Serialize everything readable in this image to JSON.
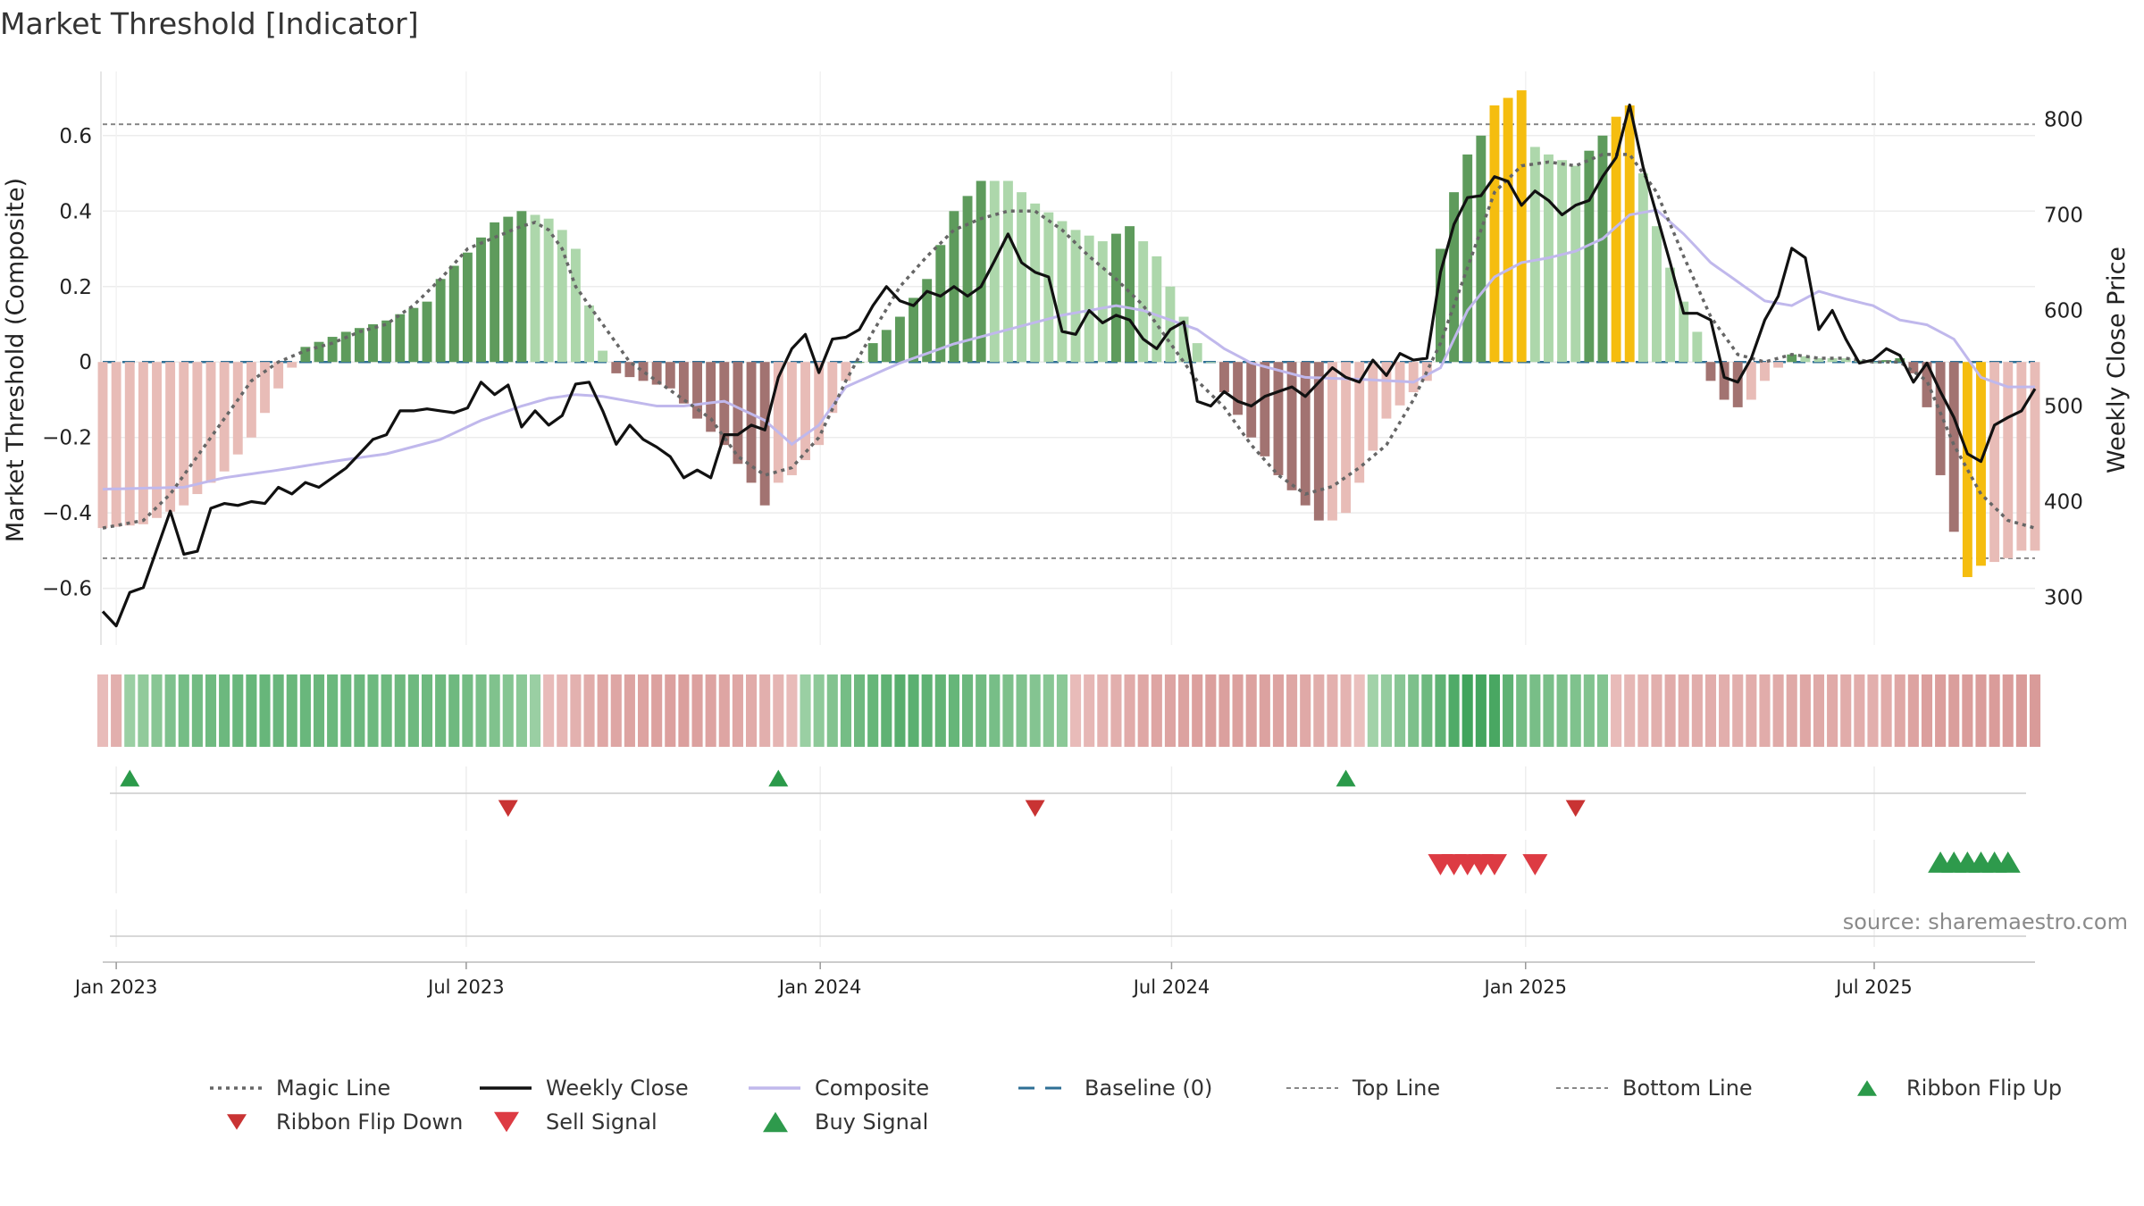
{
  "chart_data": {
    "type": "bar",
    "title": "Market Threshold [Indicator]",
    "ylabel_left": "Market Threshold (Composite)",
    "ylabel_right": "Weekly Close Price",
    "ylim_left": [
      -0.75,
      0.77
    ],
    "ylim_right": [
      250,
      850
    ],
    "yticks_left": [
      "0.6",
      "0.4",
      "0.2",
      "0",
      "−0.2",
      "−0.4",
      "−0.6"
    ],
    "yticks_left_values": [
      0.6,
      0.4,
      0.2,
      0,
      -0.2,
      -0.4,
      -0.6
    ],
    "yticks_right": [
      "800",
      "700",
      "600",
      "500",
      "400",
      "300"
    ],
    "yticks_right_values": [
      800,
      700,
      600,
      500,
      400,
      300
    ],
    "x_range_weeks": [
      -1,
      142
    ],
    "xticks": [
      {
        "label": "Jan 2023",
        "week": 0
      },
      {
        "label": "Jul 2023",
        "week": 25.9
      },
      {
        "label": "Jan 2024",
        "week": 52.1
      },
      {
        "label": "Jul 2024",
        "week": 78.1
      },
      {
        "label": "Jan 2025",
        "week": 104.3
      },
      {
        "label": "Jul 2025",
        "week": 130.1
      }
    ],
    "top_line": 0.63,
    "bottom_line": -0.52,
    "baseline": 0,
    "composite_keys": [
      [
        -1,
        -0.44
      ],
      [
        2,
        -0.43
      ],
      [
        5,
        -0.38
      ],
      [
        8,
        -0.29
      ],
      [
        10,
        -0.2
      ],
      [
        12,
        -0.07
      ],
      [
        14,
        0.04
      ],
      [
        17,
        0.08
      ],
      [
        20,
        0.11
      ],
      [
        23,
        0.16
      ],
      [
        24,
        0.22
      ],
      [
        26,
        0.29
      ],
      [
        28,
        0.37
      ],
      [
        30,
        0.4
      ],
      [
        32,
        0.38
      ],
      [
        33,
        0.35
      ],
      [
        34,
        0.3
      ],
      [
        35,
        0.15
      ],
      [
        36,
        0.03
      ],
      [
        37,
        -0.03
      ],
      [
        38,
        -0.04
      ],
      [
        41,
        -0.07
      ],
      [
        43,
        -0.15
      ],
      [
        45,
        -0.22
      ],
      [
        47,
        -0.32
      ],
      [
        48,
        -0.38
      ],
      [
        49,
        -0.32
      ],
      [
        50,
        -0.3
      ],
      [
        52,
        -0.22
      ],
      [
        54,
        -0.05
      ],
      [
        56,
        0.05
      ],
      [
        58,
        0.12
      ],
      [
        60,
        0.22
      ],
      [
        62,
        0.4
      ],
      [
        64,
        0.48
      ],
      [
        66,
        0.48
      ],
      [
        68,
        0.42
      ],
      [
        71,
        0.35
      ],
      [
        73,
        0.32
      ],
      [
        75,
        0.36
      ],
      [
        77,
        0.28
      ],
      [
        78,
        0.2
      ],
      [
        79,
        0.12
      ],
      [
        80,
        0.05
      ],
      [
        81,
        0.0
      ],
      [
        82,
        -0.08
      ],
      [
        84,
        -0.2
      ],
      [
        86,
        -0.3
      ],
      [
        88,
        -0.38
      ],
      [
        89,
        -0.42
      ],
      [
        90,
        -0.42
      ],
      [
        91,
        -0.4
      ],
      [
        92,
        -0.32
      ],
      [
        94,
        -0.15
      ],
      [
        96,
        -0.08
      ],
      [
        97,
        -0.05
      ],
      [
        98,
        0.3
      ],
      [
        99,
        0.45
      ],
      [
        100,
        0.55
      ],
      [
        101,
        0.6
      ],
      [
        102,
        0.68
      ],
      [
        104,
        0.72
      ],
      [
        105,
        0.57
      ],
      [
        106,
        0.55
      ],
      [
        108,
        0.52
      ],
      [
        110,
        0.6
      ],
      [
        111,
        0.65
      ],
      [
        112,
        0.68
      ],
      [
        113,
        0.5
      ],
      [
        114,
        0.36
      ],
      [
        115,
        0.25
      ],
      [
        116,
        0.16
      ],
      [
        117,
        0.08
      ],
      [
        118,
        -0.05
      ],
      [
        119,
        -0.1
      ],
      [
        120,
        -0.12
      ],
      [
        121,
        -0.1
      ],
      [
        122,
        -0.05
      ],
      [
        124,
        0.02
      ],
      [
        126,
        0.01
      ],
      [
        128,
        0.01
      ],
      [
        130,
        0.0
      ],
      [
        132,
        0.01
      ],
      [
        133,
        -0.03
      ],
      [
        134,
        -0.12
      ],
      [
        135,
        -0.3
      ],
      [
        136,
        -0.45
      ],
      [
        137,
        -0.57
      ],
      [
        138,
        -0.54
      ],
      [
        140,
        -0.52
      ],
      [
        141,
        -0.5
      ]
    ],
    "weekly_close_keys": [
      [
        -1,
        285
      ],
      [
        0,
        270
      ],
      [
        1,
        305
      ],
      [
        2,
        310
      ],
      [
        3,
        350
      ],
      [
        4,
        390
      ],
      [
        5,
        345
      ],
      [
        6,
        348
      ],
      [
        7,
        393
      ],
      [
        8,
        398
      ],
      [
        9,
        396
      ],
      [
        10,
        400
      ],
      [
        11,
        398
      ],
      [
        12,
        415
      ],
      [
        13,
        408
      ],
      [
        14,
        420
      ],
      [
        15,
        415
      ],
      [
        17,
        435
      ],
      [
        19,
        465
      ],
      [
        20,
        470
      ],
      [
        21,
        495
      ],
      [
        22,
        495
      ],
      [
        23,
        497
      ],
      [
        24,
        495
      ],
      [
        25,
        493
      ],
      [
        26,
        498
      ],
      [
        27,
        525
      ],
      [
        28,
        512
      ],
      [
        29,
        522
      ],
      [
        30,
        478
      ],
      [
        31,
        495
      ],
      [
        32,
        480
      ],
      [
        33,
        490
      ],
      [
        34,
        523
      ],
      [
        35,
        525
      ],
      [
        36,
        495
      ],
      [
        37,
        460
      ],
      [
        38,
        480
      ],
      [
        39,
        465
      ],
      [
        40,
        457
      ],
      [
        41,
        447
      ],
      [
        42,
        425
      ],
      [
        43,
        433
      ],
      [
        44,
        425
      ],
      [
        45,
        470
      ],
      [
        46,
        470
      ],
      [
        47,
        480
      ],
      [
        48,
        475
      ],
      [
        49,
        530
      ],
      [
        50,
        560
      ],
      [
        51,
        575
      ],
      [
        52,
        535
      ],
      [
        53,
        570
      ],
      [
        54,
        572
      ],
      [
        55,
        580
      ],
      [
        56,
        605
      ],
      [
        57,
        625
      ],
      [
        58,
        610
      ],
      [
        59,
        605
      ],
      [
        60,
        620
      ],
      [
        61,
        615
      ],
      [
        62,
        625
      ],
      [
        63,
        615
      ],
      [
        64,
        625
      ],
      [
        65,
        652
      ],
      [
        66,
        680
      ],
      [
        67,
        650
      ],
      [
        68,
        640
      ],
      [
        69,
        635
      ],
      [
        70,
        578
      ],
      [
        71,
        575
      ],
      [
        72,
        600
      ],
      [
        73,
        587
      ],
      [
        74,
        595
      ],
      [
        75,
        590
      ],
      [
        76,
        570
      ],
      [
        77,
        560
      ],
      [
        78,
        580
      ],
      [
        79,
        588
      ],
      [
        80,
        505
      ],
      [
        81,
        500
      ],
      [
        82,
        515
      ],
      [
        83,
        505
      ],
      [
        84,
        500
      ],
      [
        85,
        510
      ],
      [
        86,
        515
      ],
      [
        87,
        520
      ],
      [
        88,
        510
      ],
      [
        89,
        525
      ],
      [
        90,
        540
      ],
      [
        91,
        530
      ],
      [
        92,
        525
      ],
      [
        93,
        548
      ],
      [
        94,
        532
      ],
      [
        95,
        555
      ],
      [
        96,
        548
      ],
      [
        97,
        550
      ],
      [
        98,
        640
      ],
      [
        99,
        690
      ],
      [
        100,
        718
      ],
      [
        101,
        720
      ],
      [
        102,
        740
      ],
      [
        103,
        735
      ],
      [
        104,
        710
      ],
      [
        105,
        725
      ],
      [
        106,
        715
      ],
      [
        107,
        700
      ],
      [
        108,
        710
      ],
      [
        109,
        715
      ],
      [
        110,
        740
      ],
      [
        111,
        760
      ],
      [
        112,
        815
      ],
      [
        113,
        750
      ],
      [
        114,
        700
      ],
      [
        115,
        650
      ],
      [
        116,
        597
      ],
      [
        117,
        597
      ],
      [
        118,
        590
      ],
      [
        119,
        530
      ],
      [
        120,
        525
      ],
      [
        121,
        550
      ],
      [
        122,
        590
      ],
      [
        123,
        615
      ],
      [
        124,
        665
      ],
      [
        125,
        655
      ],
      [
        126,
        580
      ],
      [
        127,
        600
      ],
      [
        128,
        570
      ],
      [
        129,
        545
      ],
      [
        130,
        548
      ],
      [
        131,
        560
      ],
      [
        132,
        553
      ],
      [
        133,
        525
      ],
      [
        134,
        545
      ],
      [
        135,
        515
      ],
      [
        136,
        488
      ],
      [
        137,
        450
      ],
      [
        138,
        442
      ],
      [
        139,
        480
      ],
      [
        140,
        488
      ],
      [
        141,
        495
      ],
      [
        142,
        518
      ]
    ],
    "composite_line_keys": [
      [
        -1,
        413
      ],
      [
        5,
        415
      ],
      [
        8,
        425
      ],
      [
        12,
        433
      ],
      [
        16,
        442
      ],
      [
        20,
        450
      ],
      [
        24,
        465
      ],
      [
        27,
        485
      ],
      [
        30,
        500
      ],
      [
        32,
        508
      ],
      [
        34,
        512
      ],
      [
        36,
        510
      ],
      [
        38,
        505
      ],
      [
        40,
        500
      ],
      [
        42,
        500
      ],
      [
        45,
        505
      ],
      [
        48,
        485
      ],
      [
        50,
        460
      ],
      [
        52,
        480
      ],
      [
        54,
        520
      ],
      [
        58,
        545
      ],
      [
        62,
        565
      ],
      [
        66,
        580
      ],
      [
        70,
        595
      ],
      [
        74,
        605
      ],
      [
        76,
        600
      ],
      [
        78,
        590
      ],
      [
        80,
        580
      ],
      [
        82,
        560
      ],
      [
        84,
        545
      ],
      [
        88,
        530
      ],
      [
        92,
        528
      ],
      [
        96,
        525
      ],
      [
        98,
        540
      ],
      [
        100,
        600
      ],
      [
        102,
        635
      ],
      [
        104,
        650
      ],
      [
        106,
        655
      ],
      [
        108,
        662
      ],
      [
        110,
        675
      ],
      [
        112,
        700
      ],
      [
        114,
        705
      ],
      [
        116,
        680
      ],
      [
        118,
        650
      ],
      [
        120,
        630
      ],
      [
        122,
        610
      ],
      [
        124,
        605
      ],
      [
        126,
        620
      ],
      [
        128,
        612
      ],
      [
        130,
        605
      ],
      [
        132,
        590
      ],
      [
        134,
        585
      ],
      [
        136,
        570
      ],
      [
        138,
        530
      ],
      [
        140,
        520
      ],
      [
        142,
        520
      ]
    ],
    "magic_line_keys": [
      [
        -1,
        -0.44
      ],
      [
        2,
        -0.42
      ],
      [
        4,
        -0.35
      ],
      [
        6,
        -0.25
      ],
      [
        8,
        -0.15
      ],
      [
        10,
        -0.05
      ],
      [
        12,
        0.0
      ],
      [
        14,
        0.03
      ],
      [
        16,
        0.05
      ],
      [
        18,
        0.08
      ],
      [
        20,
        0.1
      ],
      [
        22,
        0.15
      ],
      [
        24,
        0.22
      ],
      [
        26,
        0.3
      ],
      [
        28,
        0.33
      ],
      [
        30,
        0.36
      ],
      [
        31,
        0.37
      ],
      [
        32,
        0.35
      ],
      [
        33,
        0.3
      ],
      [
        34,
        0.2
      ],
      [
        36,
        0.1
      ],
      [
        38,
        0.0
      ],
      [
        40,
        -0.05
      ],
      [
        42,
        -0.1
      ],
      [
        44,
        -0.15
      ],
      [
        46,
        -0.25
      ],
      [
        48,
        -0.3
      ],
      [
        50,
        -0.28
      ],
      [
        52,
        -0.2
      ],
      [
        54,
        -0.05
      ],
      [
        56,
        0.08
      ],
      [
        58,
        0.2
      ],
      [
        60,
        0.28
      ],
      [
        62,
        0.35
      ],
      [
        64,
        0.38
      ],
      [
        66,
        0.4
      ],
      [
        68,
        0.4
      ],
      [
        70,
        0.35
      ],
      [
        72,
        0.28
      ],
      [
        74,
        0.22
      ],
      [
        76,
        0.15
      ],
      [
        78,
        0.05
      ],
      [
        80,
        -0.05
      ],
      [
        82,
        -0.12
      ],
      [
        84,
        -0.22
      ],
      [
        86,
        -0.3
      ],
      [
        88,
        -0.35
      ],
      [
        90,
        -0.33
      ],
      [
        92,
        -0.28
      ],
      [
        94,
        -0.22
      ],
      [
        96,
        -0.1
      ],
      [
        98,
        0.05
      ],
      [
        100,
        0.25
      ],
      [
        102,
        0.45
      ],
      [
        104,
        0.52
      ],
      [
        106,
        0.53
      ],
      [
        108,
        0.52
      ],
      [
        110,
        0.55
      ],
      [
        112,
        0.55
      ],
      [
        114,
        0.45
      ],
      [
        116,
        0.28
      ],
      [
        118,
        0.12
      ],
      [
        120,
        0.02
      ],
      [
        122,
        0.0
      ],
      [
        124,
        0.02
      ],
      [
        126,
        0.01
      ],
      [
        128,
        0.01
      ],
      [
        130,
        0.0
      ],
      [
        132,
        0.0
      ],
      [
        134,
        -0.05
      ],
      [
        136,
        -0.22
      ],
      [
        138,
        -0.35
      ],
      [
        140,
        -0.42
      ],
      [
        142,
        -0.44
      ]
    ],
    "ribbon_keys": [
      [
        -1,
        -0.3
      ],
      [
        0,
        -0.45
      ],
      [
        1,
        0.35
      ],
      [
        5,
        0.6
      ],
      [
        10,
        0.7
      ],
      [
        20,
        0.65
      ],
      [
        25,
        0.65
      ],
      [
        30,
        0.45
      ],
      [
        31,
        0.35
      ],
      [
        32,
        -0.3
      ],
      [
        36,
        -0.55
      ],
      [
        42,
        -0.65
      ],
      [
        46,
        -0.55
      ],
      [
        48,
        -0.45
      ],
      [
        50,
        -0.3
      ],
      [
        51,
        0.35
      ],
      [
        54,
        0.6
      ],
      [
        58,
        0.8
      ],
      [
        62,
        0.7
      ],
      [
        66,
        0.55
      ],
      [
        70,
        0.45
      ],
      [
        71,
        -0.3
      ],
      [
        76,
        -0.55
      ],
      [
        81,
        -0.65
      ],
      [
        86,
        -0.6
      ],
      [
        91,
        -0.4
      ],
      [
        92,
        -0.25
      ],
      [
        93,
        0.3
      ],
      [
        96,
        0.55
      ],
      [
        98,
        0.75
      ],
      [
        100,
        0.95
      ],
      [
        102,
        0.9
      ],
      [
        104,
        0.6
      ],
      [
        110,
        0.5
      ],
      [
        111,
        -0.3
      ],
      [
        115,
        -0.5
      ],
      [
        120,
        -0.45
      ],
      [
        125,
        -0.55
      ],
      [
        130,
        -0.45
      ],
      [
        134,
        -0.65
      ],
      [
        142,
        -0.7
      ]
    ],
    "ribbon_flip_up": [
      1,
      49,
      91
    ],
    "ribbon_flip_down": [
      29,
      68,
      108
    ],
    "sell_signal": [
      98,
      99,
      100,
      101,
      102,
      105
    ],
    "buy_signal": [
      135,
      136,
      137,
      138,
      139,
      140
    ],
    "colors": {
      "bull_strong": "#5e9b5c",
      "bull_weak": "#add7ab",
      "bear_strong": "#a27371",
      "bear_weak": "#e8bcb7",
      "extreme": "#f5bd0f",
      "magic": "#666666",
      "close": "#111111",
      "composite": "#c0b8ec",
      "baseline": "#2f6f95",
      "ref": "#888888",
      "flip_up": "#2b9a4a",
      "flip_down": "#c93333",
      "sell": "#dd3b43",
      "buy": "#2e9a4c"
    },
    "legend": [
      {
        "label": "Magic Line",
        "kind": "dotted"
      },
      {
        "label": "Weekly Close",
        "kind": "solid"
      },
      {
        "label": "Composite",
        "kind": "composite"
      },
      {
        "label": "Baseline (0)",
        "kind": "dashed"
      },
      {
        "label": "Top Line",
        "kind": "refdash"
      },
      {
        "label": "Bottom Line",
        "kind": "refdash"
      },
      {
        "label": "Ribbon Flip Up",
        "kind": "tri-up-green"
      },
      {
        "label": "Ribbon Flip Down",
        "kind": "tri-down-darkred"
      },
      {
        "label": "Sell Signal",
        "kind": "tri-down-red"
      },
      {
        "label": "Buy Signal",
        "kind": "tri-up-green2"
      }
    ],
    "source": "source: sharemaestro.com"
  }
}
